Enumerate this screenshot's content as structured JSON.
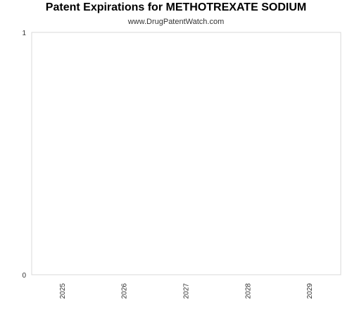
{
  "chart_data": {
    "type": "bar",
    "title": "Patent Expirations for METHOTREXATE SODIUM",
    "subtitle": "www.DrugPatentWatch.com",
    "xlabel": "",
    "ylabel": "",
    "categories": [
      "2025",
      "2026",
      "2027",
      "2028",
      "2029"
    ],
    "values": [
      0,
      0,
      0,
      0,
      0
    ],
    "ylim": [
      0,
      1
    ],
    "y_ticks": [
      "0",
      "1"
    ],
    "grid": false,
    "legend": "none",
    "colors": {
      "frame": "#d9d9d9",
      "text": "#333333",
      "bar": "#4572a7"
    }
  }
}
